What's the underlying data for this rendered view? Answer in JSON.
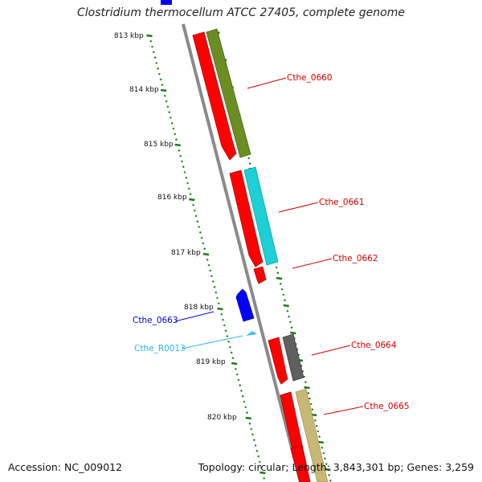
{
  "title": "Clostridium thermocellum ATCC 27405, complete genome",
  "footer": {
    "accession": "Accession: NC_009012",
    "summary": "Topology: circular; Length: 3,843,301 bp; Genes: 3,259"
  },
  "ruler": {
    "labels": [
      "813 kbp",
      "814 kbp",
      "815 kbp",
      "816 kbp",
      "817 kbp",
      "818 kbp",
      "819 kbp",
      "820 kbp"
    ]
  },
  "genes": [
    {
      "id": "Cthe_0660",
      "label": "Cthe_0660",
      "color": "#d60000"
    },
    {
      "id": "Cthe_0661",
      "label": "Cthe_0661",
      "color": "#d60000"
    },
    {
      "id": "Cthe_0662",
      "label": "Cthe_0662",
      "color": "#d60000"
    },
    {
      "id": "Cthe_0663",
      "label": "Cthe_0663",
      "color": "#0000cc"
    },
    {
      "id": "Cthe_R0013",
      "label": "Cthe_R0013",
      "color": "#2bbbd8"
    },
    {
      "id": "Cthe_0664",
      "label": "Cthe_0664",
      "color": "#d60000"
    },
    {
      "id": "Cthe_0665",
      "label": "Cthe_0665",
      "color": "#d60000"
    }
  ],
  "colors": {
    "forward_cds": "#ff0000",
    "reverse_cds": "#0000ff",
    "rna": "#33c8ee",
    "backbone": "#888888",
    "ticks": "#1a7a1a",
    "olive": "#6b8e23",
    "cyan": "#1ecfd6",
    "gray": "#606060",
    "khaki": "#c8b878"
  }
}
